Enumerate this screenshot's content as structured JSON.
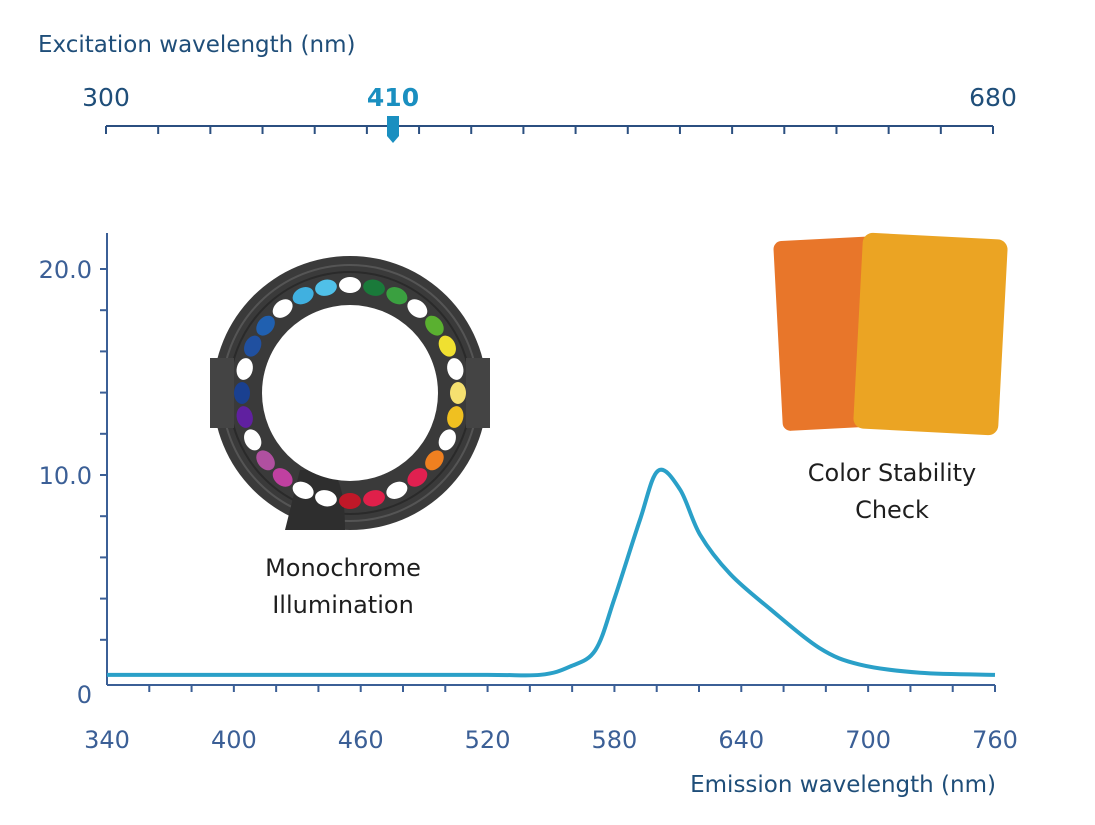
{
  "excitation_axis": {
    "label": "Excitation wavelength (nm)",
    "min": 300,
    "max": 680,
    "min_label": "300",
    "max_label": "680",
    "selected": 410,
    "selected_label": "410",
    "tick_count": 18
  },
  "chart_data": {
    "type": "line",
    "xlabel": "Emission wavelength (nm)",
    "ylabel": "",
    "xlim": [
      340,
      760
    ],
    "ylim": [
      0,
      21.7
    ],
    "x_tick_labels": [
      "340",
      "400",
      "460",
      "520",
      "580",
      "640",
      "700",
      "760"
    ],
    "x_ticks": [
      340,
      400,
      460,
      520,
      580,
      640,
      700,
      760
    ],
    "x_minor_step": 20,
    "y_tick_labels": [
      "0",
      "10.0",
      "20.0"
    ],
    "y_ticks": [
      0,
      10,
      20
    ],
    "y_minor_step": 2,
    "grid": false,
    "series": [
      {
        "x": [
          340,
          400,
          460,
          520,
          545,
          559,
          571,
          580,
          592,
          600.6,
          611,
          620.5,
          634.7,
          653.6,
          677,
          696,
          724.6,
          760
        ],
        "y": [
          0.3,
          0.3,
          0.3,
          0.3,
          0.3,
          0.7,
          1.5,
          4.0,
          7.8,
          10.2,
          9.3,
          7.1,
          5.2,
          3.5,
          1.6,
          0.8,
          0.4,
          0.3
        ]
      }
    ]
  },
  "annotations": {
    "ring_caption_line1": "Monochrome",
    "ring_caption_line2": "Illumination",
    "cards_caption_line1": "Color Stability",
    "cards_caption_line2": "Check"
  },
  "colors": {
    "axis": "#3b5f96",
    "axis_title": "#1f4e79",
    "curve": "#2aa0c8",
    "selected": "#1a8fc0",
    "ring": "#3c3c3c",
    "card_orange": "#e8762a",
    "card_yellow": "#eba423"
  },
  "ring_led_colors": [
    "#ffffff",
    "#1a7a3a",
    "#3aa040",
    "#ffffff",
    "#5ab030",
    "#f0e030",
    "#ffffff",
    "#f5e070",
    "#f0c020",
    "#ffffff",
    "#f08020",
    "#e02050",
    "#ffffff",
    "#e0204a",
    "#c01828",
    "#ffffff",
    "#ffffff",
    "#c040a0",
    "#b050a0",
    "#ffffff",
    "#6020a0",
    "#1a4090",
    "#ffffff",
    "#2050a0",
    "#2060b0",
    "#ffffff",
    "#40b0e0",
    "#50c0e8"
  ]
}
